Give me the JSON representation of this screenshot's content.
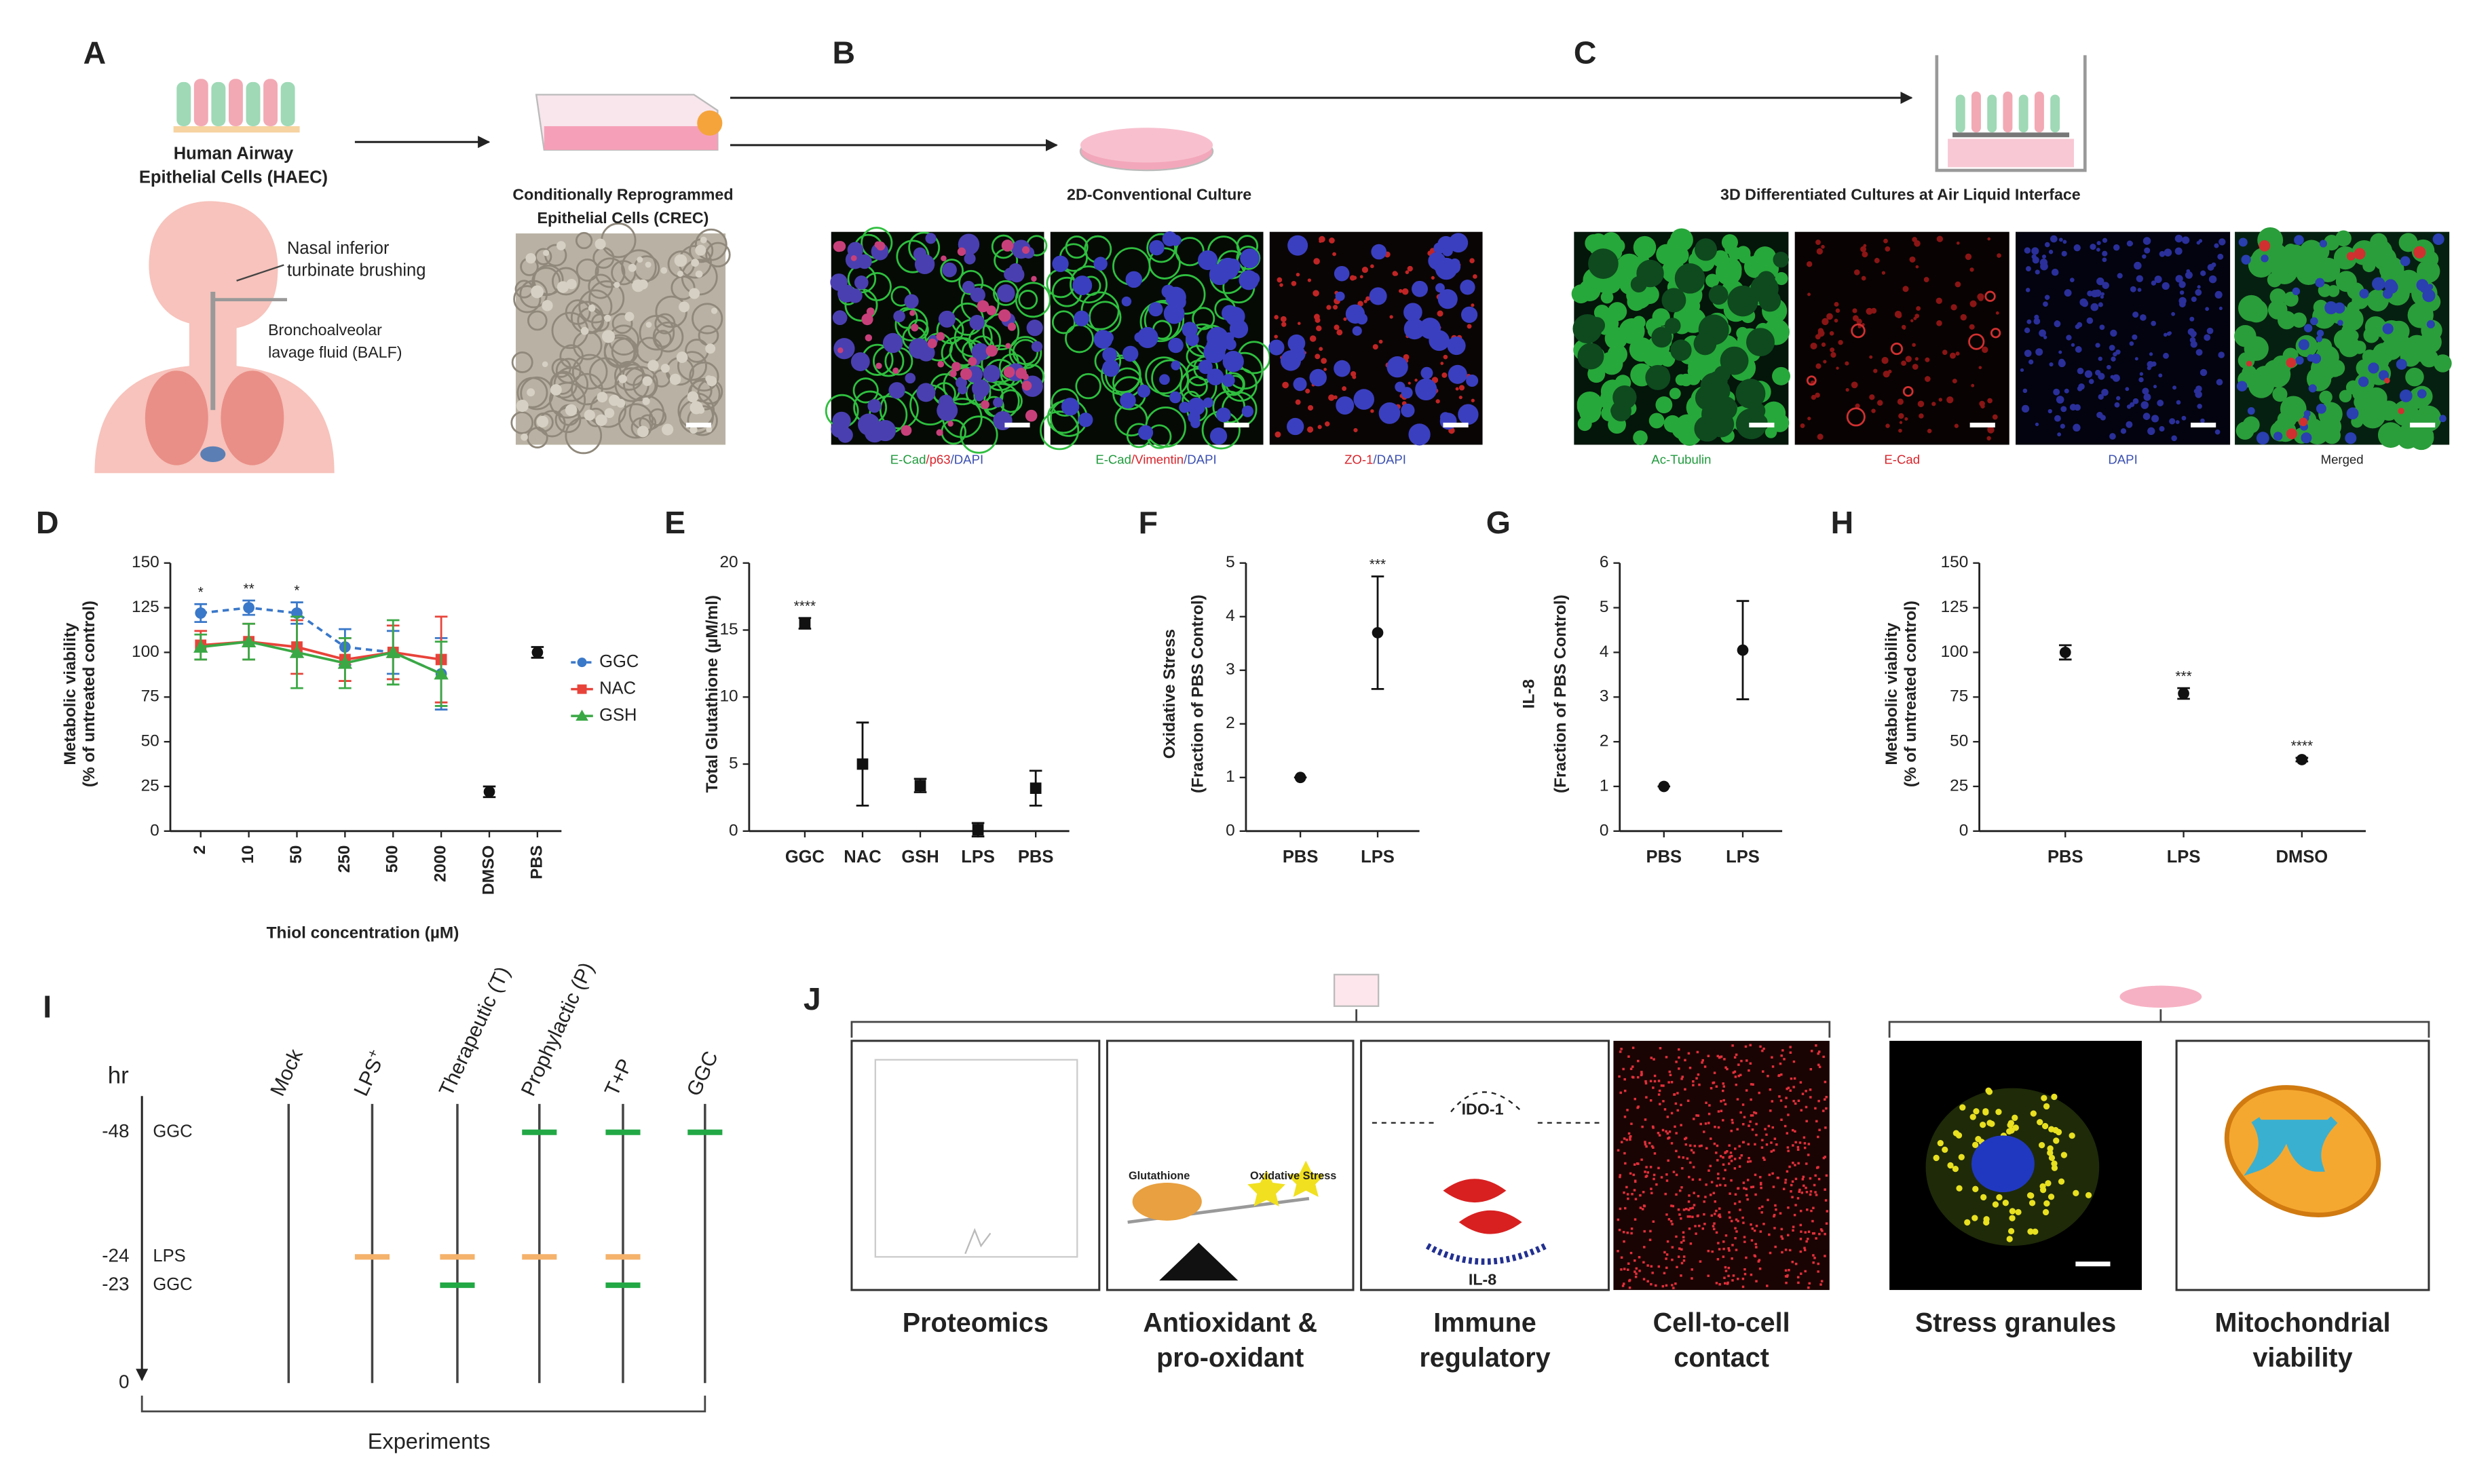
{
  "panels": {
    "A": {
      "letter": "A",
      "haec": [
        "Human Airway",
        "Epithelial Cells (HAEC)"
      ],
      "nasal": [
        "Nasal inferior",
        "turbinate brushing"
      ],
      "balf": [
        "Bronchoalveolar",
        "lavage fluid (BALF)"
      ],
      "crec": [
        "Conditionally Reprogrammed",
        "Epithelial Cells (CREC)"
      ]
    },
    "B": {
      "letter": "B",
      "title": "2D-Conventional Culture",
      "captions": [
        [
          {
            "text": "E-Cad",
            "color": "#1f9a3c"
          },
          {
            "text": "/p63",
            "color": "#d8232a"
          },
          {
            "text": "/DAPI",
            "color": "#3a4fb0"
          }
        ],
        [
          {
            "text": "E-Cad",
            "color": "#1f9a3c"
          },
          {
            "text": "/Vimentin",
            "color": "#d8232a"
          },
          {
            "text": "/DAPI",
            "color": "#3a4fb0"
          }
        ],
        [
          {
            "text": "ZO-1",
            "color": "#d8232a"
          },
          {
            "text": "/DAPI",
            "color": "#3a4fb0"
          }
        ]
      ]
    },
    "C": {
      "letter": "C",
      "title": "3D Differentiated Cultures at Air Liquid Interface",
      "captions": [
        [
          {
            "text": "Ac-Tubulin",
            "color": "#1f9a3c"
          }
        ],
        [
          {
            "text": "E-Cad",
            "color": "#d8232a"
          }
        ],
        [
          {
            "text": "DAPI",
            "color": "#3a4fb0"
          }
        ],
        [
          {
            "text": "Merged",
            "color": "#222222"
          }
        ]
      ]
    }
  },
  "chart_data": [
    {
      "type": "line",
      "panel": "D",
      "ylabel": [
        "Metabolic viability",
        "(% of untreated control)"
      ],
      "xlabel": "Thiol concentration (µM)",
      "categories": [
        "2",
        "10",
        "50",
        "250",
        "500",
        "2000",
        "DMSO",
        "PBS"
      ],
      "ylim": [
        0,
        150
      ],
      "yticks": [
        0,
        25,
        50,
        75,
        100,
        125,
        150
      ],
      "legend": "right",
      "significance": [
        "*",
        "**",
        "*",
        null,
        null,
        null,
        null,
        null
      ],
      "series": [
        {
          "name": "GGC",
          "color": "#3a78c9",
          "marker": "circle",
          "linestyle": "dashed",
          "values": [
            122,
            125,
            122,
            103,
            100,
            88,
            null,
            null
          ],
          "errors": [
            5,
            4,
            6,
            10,
            12,
            20,
            null,
            null
          ]
        },
        {
          "name": "NAC",
          "color": "#e8433a",
          "marker": "square",
          "linestyle": "solid",
          "values": [
            104,
            106,
            103,
            96,
            100,
            96,
            null,
            null
          ],
          "errors": [
            8,
            10,
            15,
            12,
            15,
            24,
            null,
            null
          ]
        },
        {
          "name": "GSH",
          "color": "#3aa845",
          "marker": "triangle",
          "linestyle": "solid",
          "values": [
            103,
            106,
            100,
            94,
            100,
            88,
            null,
            null
          ],
          "errors": [
            7,
            10,
            20,
            14,
            18,
            18,
            null,
            null
          ]
        },
        {
          "color": "#111111",
          "marker": "circle",
          "linestyle": "none",
          "values": [
            null,
            null,
            null,
            null,
            null,
            null,
            22,
            100
          ],
          "errors": [
            null,
            null,
            null,
            null,
            null,
            null,
            3,
            3
          ]
        }
      ]
    },
    {
      "type": "dot",
      "panel": "E",
      "ylabel": [
        "Total Glutathione (µM/ml)"
      ],
      "categories": [
        "GGC",
        "NAC",
        "GSH",
        "LPS",
        "PBS"
      ],
      "values": [
        15.5,
        5,
        3.4,
        0.1,
        3.2
      ],
      "errors": [
        0.4,
        3.1,
        0.5,
        0.5,
        1.3
      ],
      "color": "#111111",
      "marker": "square",
      "ylim": [
        0,
        20
      ],
      "yticks": [
        0,
        5,
        10,
        15,
        20
      ],
      "significance": [
        "****",
        null,
        null,
        null,
        null
      ]
    },
    {
      "type": "dot",
      "panel": "F",
      "ylabel": [
        "Oxidative Stress",
        "(Fraction of PBS Control)"
      ],
      "categories": [
        "PBS",
        "LPS"
      ],
      "values": [
        1,
        3.7
      ],
      "errors": [
        0,
        1.05
      ],
      "color": "#111111",
      "marker": "circle",
      "ylim": [
        0,
        5
      ],
      "yticks": [
        0,
        1,
        2,
        3,
        4,
        5
      ],
      "significance": [
        null,
        "***"
      ]
    },
    {
      "type": "dot",
      "panel": "G",
      "ylabel": [
        "IL-8",
        "(Fraction of PBS Control)"
      ],
      "categories": [
        "PBS",
        "LPS"
      ],
      "values": [
        1,
        4.05
      ],
      "errors": [
        0,
        1.1
      ],
      "color": "#111111",
      "marker": "circle",
      "ylim": [
        0,
        6
      ],
      "yticks": [
        0,
        1,
        2,
        3,
        4,
        5,
        6
      ],
      "significance": [
        null,
        null
      ]
    },
    {
      "type": "dot",
      "panel": "H",
      "ylabel": [
        "Metabolic viability",
        "(% of untreated control)"
      ],
      "categories": [
        "PBS",
        "LPS",
        "DMSO"
      ],
      "values": [
        100,
        77,
        40
      ],
      "errors": [
        4,
        3,
        1
      ],
      "color": "#111111",
      "marker": "circle",
      "ylim": [
        0,
        150
      ],
      "yticks": [
        0,
        25,
        50,
        75,
        100,
        125,
        150
      ],
      "significance": [
        null,
        "***",
        "****"
      ]
    }
  ],
  "timeline": {
    "panel": "I",
    "unit": "hr",
    "axis_label": "Experiments",
    "timepoints": [
      {
        "hr": -48,
        "treatment": "GGC",
        "color": "#22a845"
      },
      {
        "hr": -24,
        "treatment": "LPS",
        "color": "#f4b26b"
      },
      {
        "hr": -23,
        "treatment": "GGC",
        "color": "#22a845"
      },
      {
        "hr": 0
      }
    ],
    "columns": [
      {
        "name": "Mock",
        "doses": []
      },
      {
        "name": "LPS",
        "superscript": "+",
        "doses": [
          -24
        ]
      },
      {
        "name": "Therapeutic (T)",
        "doses": [
          -24,
          -23
        ]
      },
      {
        "name": "Prophylactic (P)",
        "doses": [
          -48,
          -24
        ]
      },
      {
        "name": "T+P",
        "doses": [
          -48,
          -24,
          -23
        ]
      },
      {
        "name": "GGC",
        "doses": [
          -48
        ]
      }
    ]
  },
  "summary": {
    "panel": "J",
    "boxes": [
      {
        "label": [
          "Proteomics"
        ]
      },
      {
        "label": [
          "Antioxidant &",
          "pro-oxidant"
        ],
        "inner": [
          "Glutathione",
          "Oxidative Stress"
        ]
      },
      {
        "label": [
          "Immune",
          "regulatory"
        ],
        "inner": [
          "IDO-1",
          "IL-8"
        ]
      },
      {
        "label": [
          "Cell-to-cell",
          "contact"
        ]
      },
      {
        "label": [
          "Stress granules"
        ]
      },
      {
        "label": [
          "Mitochondrial",
          "viability"
        ]
      }
    ]
  }
}
